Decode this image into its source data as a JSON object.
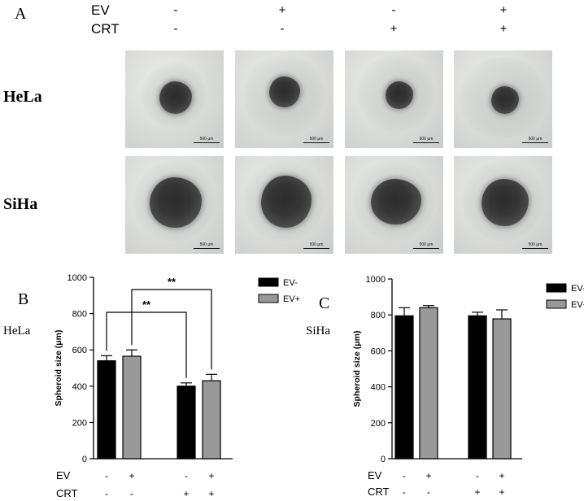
{
  "panel_a": {
    "letter": "A",
    "ev_label": "EV",
    "crt_label": "CRT",
    "ev_signs": [
      "-",
      "+",
      "-",
      "+"
    ],
    "crt_signs": [
      "-",
      "-",
      "+",
      "+"
    ],
    "rows": [
      {
        "label": "HeLa",
        "scalebar": [
          "500 µm",
          "500 µm",
          "500 µm",
          "500 µm"
        ]
      },
      {
        "label": "SiHa",
        "scalebar": [
          "500 µm",
          "500 µm",
          "500 µm",
          "500 µm"
        ]
      }
    ]
  },
  "panel_b": {
    "letter": "B",
    "side_label": "HeLa"
  },
  "panel_c": {
    "letter": "C",
    "side_label": "SiHa"
  },
  "chart_data": [
    {
      "type": "bar",
      "panel": "B",
      "ylabel": "Spheroid size (μm)",
      "ylim": [
        0,
        1000
      ],
      "yticks": [
        0,
        200,
        400,
        600,
        800,
        1000
      ],
      "groups": 2,
      "series": [
        {
          "name": "EV-",
          "color": "#000000",
          "values": [
            540,
            400
          ],
          "errors": [
            28,
            18
          ]
        },
        {
          "name": "EV+",
          "color": "#999999",
          "values": [
            565,
            430
          ],
          "errors": [
            35,
            35
          ]
        }
      ],
      "legend": "top-right",
      "condition_rows": [
        {
          "label": "EV",
          "signs": [
            "-",
            "+",
            "-",
            "+"
          ]
        },
        {
          "label": "CRT",
          "signs": [
            "-",
            "-",
            "+",
            "+"
          ]
        }
      ],
      "significance": [
        {
          "from_bar": 0,
          "to_bar": 2,
          "label": "**"
        },
        {
          "from_bar": 1,
          "to_bar": 3,
          "label": "**"
        }
      ]
    },
    {
      "type": "bar",
      "panel": "C",
      "ylabel": "Spheroid size (μm)",
      "ylim": [
        0,
        1000
      ],
      "yticks": [
        0,
        200,
        400,
        600,
        800,
        1000
      ],
      "groups": 2,
      "series": [
        {
          "name": "EV-",
          "color": "#000000",
          "values": [
            795,
            795
          ],
          "errors": [
            45,
            20
          ]
        },
        {
          "name": "EV+",
          "color": "#999999",
          "values": [
            840,
            778
          ],
          "errors": [
            12,
            50
          ]
        }
      ],
      "legend": "top-right",
      "condition_rows": [
        {
          "label": "EV",
          "signs": [
            "-",
            "+",
            "-",
            "+"
          ]
        },
        {
          "label": "CRT",
          "signs": [
            "-",
            "-",
            "+",
            "+"
          ]
        }
      ],
      "significance": []
    }
  ]
}
